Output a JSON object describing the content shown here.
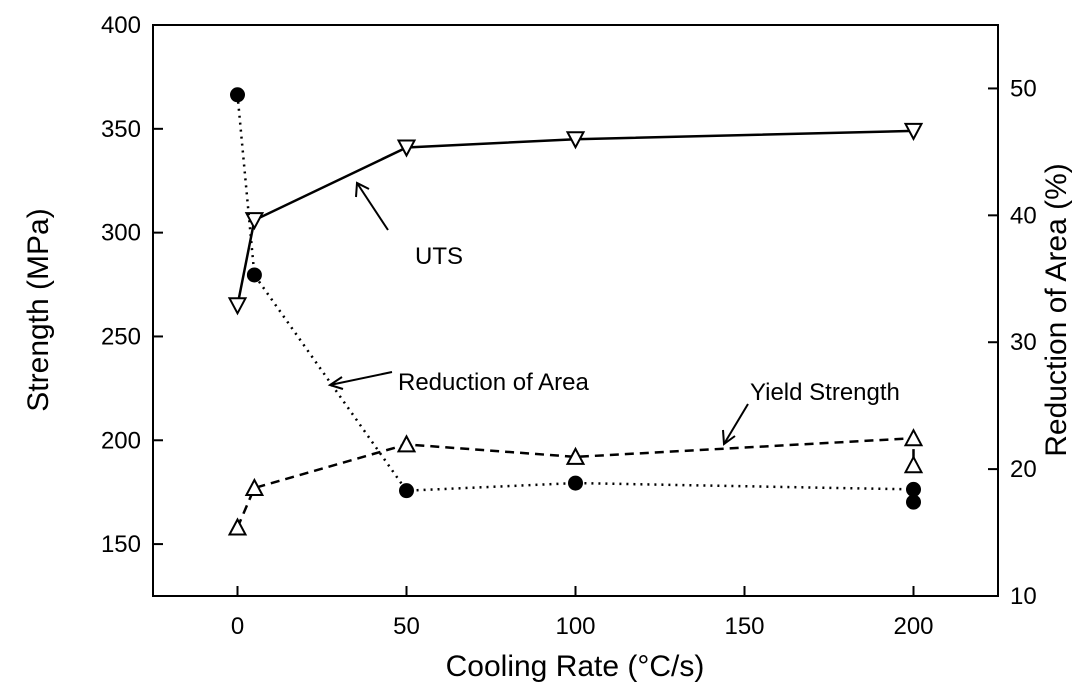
{
  "chart_data": {
    "type": "line",
    "xlabel": "Cooling Rate (°C/s)",
    "ylabel": "Strength (MPa)",
    "y2label": "Reduction of Area (%)",
    "xlim": [
      -25,
      225
    ],
    "xticks": [
      0,
      50,
      100,
      150,
      200
    ],
    "ylim": [
      125,
      400
    ],
    "yticks": [
      150,
      200,
      250,
      300,
      350,
      400
    ],
    "y2lim": [
      10,
      55
    ],
    "y2ticks": [
      10,
      20,
      30,
      40,
      50
    ],
    "series": [
      {
        "name": "UTS",
        "color": "#000000",
        "marker": "triangle-down",
        "dash": "solid",
        "x": [
          0,
          5,
          50,
          100,
          200
        ],
        "values": [
          265,
          306,
          341,
          345,
          349
        ]
      },
      {
        "name": "Yield Strength",
        "color": "#000000",
        "marker": "triangle-up",
        "dash": "dashed",
        "x": [
          0,
          5,
          50,
          100,
          200,
          200
        ],
        "values": [
          158,
          177,
          198,
          192,
          201,
          188
        ]
      },
      {
        "name": "Reduction of Area",
        "color": "#000000",
        "marker": "circle",
        "dash": "dotted",
        "axis": "y2",
        "x": [
          0,
          5,
          50,
          100,
          200,
          200
        ],
        "values": [
          49.5,
          35.3,
          18.3,
          18.9,
          18.4,
          17.4
        ]
      }
    ]
  }
}
